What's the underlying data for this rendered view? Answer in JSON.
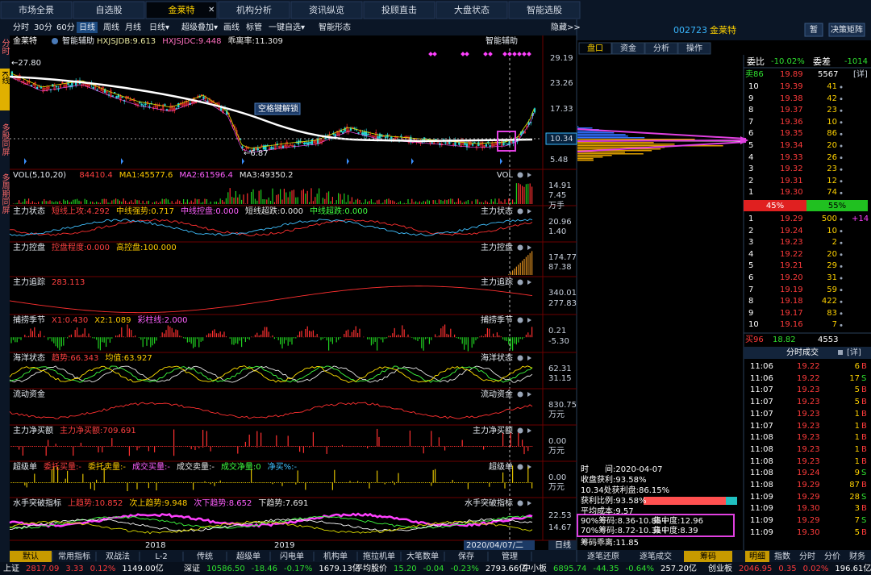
{
  "top_tabs": [
    "市场全景",
    "自选股",
    "金莱特",
    "机构分析",
    "资讯纵览",
    "投顾直击",
    "大盘状态",
    "智能选股"
  ],
  "close_icon": "✕",
  "toolbar": {
    "periods": [
      "分时",
      "30分",
      "60分",
      "日线",
      "周线",
      "月线"
    ],
    "tools": [
      "日线▾",
      "超级叠加▾",
      "画线",
      "标管",
      "一键自选▾",
      "智能形态"
    ],
    "hide": "隐藏>>"
  },
  "side_tabs": [
    "分时",
    "K线",
    "多股同屏",
    "多周期同屏"
  ],
  "stock": {
    "code": "002723",
    "name": "金莱特",
    "buttons": [
      "暂",
      "决策矩阵"
    ]
  },
  "main_chart": {
    "name": "金莱特",
    "indicator": "智能辅助",
    "values": [
      "HXJSJDB:9.613",
      "HXJSJDC:9.448",
      "乖离率:11.309"
    ],
    "right_label": "智能辅助",
    "high": "←27.80",
    "low": "←6.87",
    "unlock": "空格键解锁",
    "axis": [
      "29.19",
      "23.26",
      "17.33",
      "10.34",
      "5.48"
    ]
  },
  "panels": [
    {
      "title": "VOL(5,10,20)",
      "items": [
        "84410.4",
        "MA1:45577.6",
        "MA2:61596.4",
        "MA3:49350.2"
      ],
      "right_label": "VOL",
      "axis": [
        "14.91",
        "7.45",
        "万手"
      ]
    },
    {
      "title": "主力状态",
      "items": [
        "短线上攻:4.292",
        "中线强势:0.717",
        "中线控盘:0.000",
        "短线超跌:0.000",
        "中线超跌:0.000"
      ],
      "right_label": "主力状态",
      "axis": [
        "20.96",
        "1.40"
      ]
    },
    {
      "title": "主力控盘",
      "items": [
        "控盘程度:0.000",
        "高控盘:100.000"
      ],
      "right_label": "主力控盘",
      "axis": [
        "174.77",
        "87.38"
      ]
    },
    {
      "title": "主力追踪",
      "items": [
        "283.113"
      ],
      "right_label": "主力追踪",
      "axis": [
        "340.01",
        "277.83"
      ]
    },
    {
      "title": "捕捞季节",
      "items": [
        "X1:0.430",
        "X2:1.089",
        "彩柱线:2.000"
      ],
      "right_label": "捕捞季节",
      "axis": [
        "0.21",
        "-5.30"
      ]
    },
    {
      "title": "海洋状态",
      "items": [
        "趋势:66.343",
        "均值:63.927"
      ],
      "right_label": "海洋状态",
      "axis": [
        "62.31",
        "31.15"
      ]
    },
    {
      "title": "流动资金",
      "items": [],
      "right_label": "流动资金",
      "axis": [
        "830.75",
        "万元"
      ]
    },
    {
      "title": "主力净买额",
      "items": [
        "主力净买额:709.691"
      ],
      "right_label": "主力净买额",
      "axis": [
        "0.00",
        "万元"
      ]
    },
    {
      "title": "超级单",
      "items": [
        "委托买量:-",
        "委托卖量:-",
        "成交买量:-",
        "成交卖量:-",
        "成交净量:0",
        "净买%:-"
      ],
      "right_label": "超级单",
      "axis": [
        "0.00",
        "万元"
      ]
    },
    {
      "title": "水手突破指标",
      "items": [
        "上趋势:10.852",
        "次上趋势:9.948",
        "次下趋势:8.652",
        "下趋势:7.691"
      ],
      "right_label": "水手突破指标",
      "axis": [
        "22.53",
        "14.67"
      ]
    }
  ],
  "x_axis": [
    "2018",
    "2019",
    "2020/04/07/二"
  ],
  "period_label": "日线",
  "bottom_tabs": [
    "默认",
    "常用指标",
    "双战法",
    "L-2",
    "传统",
    "超级单",
    "闪电单",
    "机构单",
    "拖拉机单",
    "大笔数单",
    "保存",
    "管理"
  ],
  "right_tabs": [
    "盘口",
    "资金",
    "分析",
    "操作"
  ],
  "order_book": {
    "wei_bi_label": "委比",
    "wei_bi": "-10.02%",
    "wei_cha_label": "委差",
    "wei_cha": "-1014",
    "sell_total": [
      "卖86",
      "19.89",
      "5567",
      "[详]"
    ],
    "sell": [
      [
        "10",
        "19.39",
        "41"
      ],
      [
        "9",
        "19.38",
        "42"
      ],
      [
        "8",
        "19.37",
        "23"
      ],
      [
        "7",
        "19.36",
        "10"
      ],
      [
        "6",
        "19.35",
        "86"
      ],
      [
        "5",
        "19.34",
        "20"
      ],
      [
        "4",
        "19.33",
        "26"
      ],
      [
        "3",
        "19.32",
        "23"
      ],
      [
        "2",
        "19.31",
        "12"
      ],
      [
        "1",
        "19.30",
        "74"
      ]
    ],
    "ratio": [
      "45%",
      "55%"
    ],
    "buy": [
      [
        "1",
        "19.29",
        "500",
        "+14"
      ],
      [
        "2",
        "19.24",
        "10"
      ],
      [
        "3",
        "19.23",
        "2"
      ],
      [
        "4",
        "19.22",
        "20"
      ],
      [
        "5",
        "19.21",
        "29"
      ],
      [
        "6",
        "19.20",
        "31"
      ],
      [
        "7",
        "19.19",
        "59"
      ],
      [
        "8",
        "19.18",
        "422"
      ],
      [
        "9",
        "19.17",
        "83"
      ],
      [
        "10",
        "19.16",
        "7"
      ]
    ],
    "buy_total": [
      "买96",
      "18.82",
      "4553"
    ]
  },
  "trades": {
    "title": "分时成交",
    "detail": "[详]",
    "rows": [
      [
        "11:06",
        "19.22",
        "6",
        "B"
      ],
      [
        "11:06",
        "19.22",
        "17",
        "S"
      ],
      [
        "11:07",
        "19.23",
        "5",
        "B"
      ],
      [
        "11:07",
        "19.23",
        "5",
        "B"
      ],
      [
        "11:07",
        "19.23",
        "1",
        "B"
      ],
      [
        "11:07",
        "19.23",
        "1",
        "B"
      ],
      [
        "11:08",
        "19.23",
        "1",
        "B"
      ],
      [
        "11:08",
        "19.23",
        "1",
        "B"
      ],
      [
        "11:08",
        "19.23",
        "1",
        "B"
      ],
      [
        "11:08",
        "19.24",
        "9",
        "S"
      ],
      [
        "11:08",
        "19.29",
        "87",
        "B"
      ],
      [
        "11:09",
        "19.29",
        "28",
        "S"
      ],
      [
        "11:09",
        "19.30",
        "3",
        "B"
      ],
      [
        "11:09",
        "19.29",
        "7",
        "S"
      ],
      [
        "11:09",
        "19.30",
        "5",
        "B"
      ]
    ]
  },
  "chips": {
    "lines": [
      "时　　间:2020-04-07",
      "收盘获利:93.58%",
      "10.34处获利盘:86.15%",
      "获利比例:93.58%",
      "平均成本:9.57"
    ],
    "boxed": [
      [
        "90%筹码:8.36-10.85+",
        "集中度:12.96"
      ],
      [
        "70%筹码:8.72-10.31+",
        "集中度:8.39"
      ]
    ],
    "deviation": "筹码乖离:11.85"
  },
  "mid_buttons": [
    "逐笔还原",
    "逐笔成交",
    "筹码"
  ],
  "right_buttons": [
    "明细",
    "指数",
    "分时",
    "分价",
    "财务"
  ],
  "status_bar": [
    {
      "name": "上证",
      "color": "#ff3b3b",
      "values": [
        "2817.09",
        "3.33",
        "0.12%",
        "1149.00亿"
      ]
    },
    {
      "name": "深证",
      "color": "#2fe02f",
      "values": [
        "10586.50",
        "-18.46",
        "-0.17%",
        "1679.13亿"
      ]
    },
    {
      "name": "平均股价",
      "color": "#2fe02f",
      "values": [
        "15.20",
        "-0.04",
        "-0.23%",
        "2793.66亿"
      ]
    },
    {
      "name": "中小板",
      "color": "#2fe02f",
      "values": [
        "6895.74",
        "-44.35",
        "-0.64%",
        "257.20亿"
      ]
    },
    {
      "name": "创业板",
      "color": "#ff3b3b",
      "values": [
        "2046.95",
        "0.35",
        "0.02%",
        "196.61亿"
      ]
    }
  ]
}
